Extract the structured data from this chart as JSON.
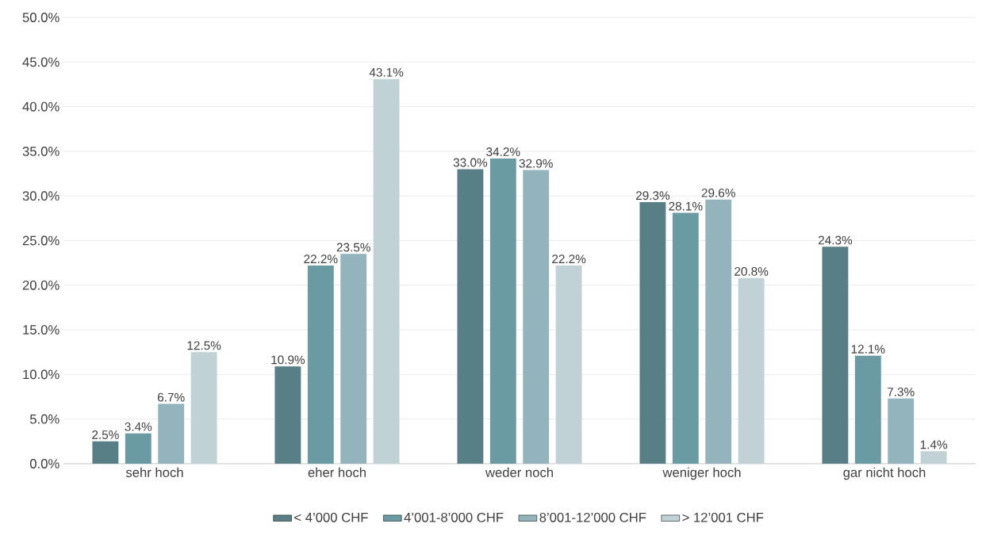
{
  "chart_data": {
    "type": "bar",
    "categories": [
      "sehr hoch",
      "eher hoch",
      "weder noch",
      "weniger hoch",
      "gar nicht hoch"
    ],
    "series": [
      {
        "name": "< 4’000 CHF",
        "color": "#587f86",
        "values": [
          2.5,
          10.9,
          33.0,
          29.3,
          24.3
        ],
        "value_labels": [
          "2.5%",
          "10.9%",
          "33.0%",
          "29.3%",
          "24.3%"
        ]
      },
      {
        "name": "4’001-8’000 CHF",
        "color": "#6a9ba3",
        "values": [
          3.4,
          22.2,
          34.2,
          28.1,
          12.1
        ],
        "value_labels": [
          "3.4%",
          "22.2%",
          "34.2%",
          "28.1%",
          "12.1%"
        ]
      },
      {
        "name": "8’001-12’000 CHF",
        "color": "#93b4bd",
        "values": [
          6.7,
          23.5,
          32.9,
          29.6,
          7.3
        ],
        "value_labels": [
          "6.7%",
          "23.5%",
          "32.9%",
          "29.6%",
          "7.3%"
        ]
      },
      {
        "name": "> 12’001 CHF",
        "color": "#c0d2d6",
        "values": [
          12.5,
          43.1,
          22.2,
          20.8,
          1.4
        ],
        "value_labels": [
          "12.5%",
          "43.1%",
          "22.2%",
          "20.8%",
          "1.4%"
        ]
      }
    ],
    "ylim": [
      0,
      50
    ],
    "yticks": [
      {
        "value": 0,
        "label": "0.0%"
      },
      {
        "value": 5,
        "label": "5.0%"
      },
      {
        "value": 10,
        "label": "10.0%"
      },
      {
        "value": 15,
        "label": "15.0%"
      },
      {
        "value": 20,
        "label": "20.0%"
      },
      {
        "value": 25,
        "label": "25.0%"
      },
      {
        "value": 30,
        "label": "30.0%"
      },
      {
        "value": 35,
        "label": "35.0%"
      },
      {
        "value": 40,
        "label": "40.0%"
      },
      {
        "value": 45,
        "label": "45.0%"
      },
      {
        "value": 50,
        "label": "50.0%"
      }
    ],
    "grid": "y",
    "legend": "bottom"
  }
}
